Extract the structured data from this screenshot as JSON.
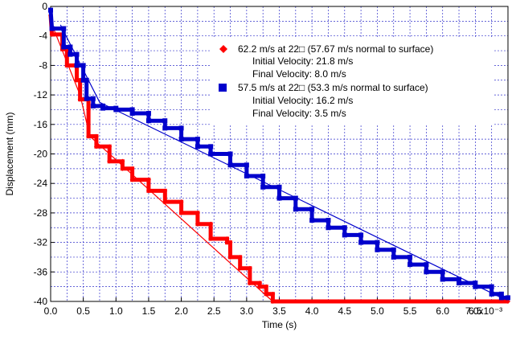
{
  "chart_data": {
    "type": "line",
    "xlabel": "Time (s)",
    "ylabel": "Displacement (mm)",
    "xlim": [
      0,
      0.007
    ],
    "ylim": [
      -40,
      0
    ],
    "grid": true,
    "legend_position": "top-right",
    "x_ticks": [
      "0.0",
      "0.5",
      "1.0",
      "1.5",
      "2.0",
      "2.5",
      "3.0",
      "3.5",
      "4.0",
      "4.5",
      "5.0",
      "5.5",
      "6.0",
      "6.5",
      "7.0x10⁻³"
    ],
    "y_ticks": [
      "0",
      "-4",
      "-8",
      "-12",
      "-16",
      "-20",
      "-24",
      "-28",
      "-32",
      "-36",
      "-40"
    ],
    "series": [
      {
        "name": "62.2 m/s at 22□ (57.67 m/s normal to surface)",
        "color": "#ff0000",
        "marker": "diamond",
        "sublabels": [
          "Initial Velocity: 21.8 m/s",
          "Final Velocity: 8.0 m/s"
        ],
        "fit": [
          [
            0.0,
            -2.0
          ],
          [
            0.00045,
            -12.0
          ],
          [
            0.0006,
            -17.6
          ],
          [
            0.0034,
            -40.0
          ]
        ],
        "points": [
          [
            0.0,
            -1.2
          ],
          [
            2e-05,
            -3.8
          ],
          [
            0.00018,
            -3.8
          ],
          [
            0.00018,
            -5.8
          ],
          [
            0.00025,
            -5.8
          ],
          [
            0.00025,
            -8.0
          ],
          [
            0.0004,
            -8.0
          ],
          [
            0.0004,
            -10.0
          ],
          [
            0.00045,
            -10.0
          ],
          [
            0.00045,
            -12.6
          ],
          [
            0.00058,
            -12.6
          ],
          [
            0.00058,
            -17.6
          ],
          [
            0.0007,
            -17.6
          ],
          [
            0.0007,
            -19.0
          ],
          [
            0.0009,
            -19.0
          ],
          [
            0.0009,
            -21.0
          ],
          [
            0.0011,
            -21.0
          ],
          [
            0.0011,
            -22.0
          ],
          [
            0.00125,
            -22.0
          ],
          [
            0.00125,
            -23.5
          ],
          [
            0.0015,
            -23.5
          ],
          [
            0.0015,
            -25.0
          ],
          [
            0.00175,
            -25.0
          ],
          [
            0.00175,
            -26.5
          ],
          [
            0.002,
            -26.5
          ],
          [
            0.002,
            -28.0
          ],
          [
            0.00225,
            -28.0
          ],
          [
            0.00225,
            -29.5
          ],
          [
            0.00245,
            -29.5
          ],
          [
            0.00245,
            -31.5
          ],
          [
            0.0027,
            -31.5
          ],
          [
            0.0027,
            -32.0
          ],
          [
            0.00275,
            -32.0
          ],
          [
            0.00275,
            -34.0
          ],
          [
            0.0029,
            -34.0
          ],
          [
            0.0029,
            -35.5
          ],
          [
            0.00305,
            -35.5
          ],
          [
            0.00305,
            -37.5
          ],
          [
            0.0032,
            -37.5
          ],
          [
            0.0032,
            -38.0
          ],
          [
            0.0033,
            -38.0
          ],
          [
            0.0033,
            -39.0
          ],
          [
            0.0034,
            -39.0
          ],
          [
            0.0034,
            -40.0
          ],
          [
            0.007,
            -40.0
          ]
        ]
      },
      {
        "name": "57.5 m/s at 22□ (53.3 m/s normal to surface)",
        "color": "#0000cc",
        "marker": "square",
        "sublabels": [
          "Initial Velocity: 16.2 m/s",
          "Final Velocity: 3.5 m/s"
        ],
        "fit": [
          [
            0.00015,
            -2.5
          ],
          [
            0.00075,
            -13.0
          ],
          [
            0.0069,
            -39.5
          ]
        ],
        "points": [
          [
            0.0,
            -0.5
          ],
          [
            2e-05,
            -3.0
          ],
          [
            0.0002,
            -3.0
          ],
          [
            0.0002,
            -5.5
          ],
          [
            0.0003,
            -5.5
          ],
          [
            0.0003,
            -6.5
          ],
          [
            0.0004,
            -6.5
          ],
          [
            0.0004,
            -8.0
          ],
          [
            0.0005,
            -8.0
          ],
          [
            0.0005,
            -10.0
          ],
          [
            0.00055,
            -10.0
          ],
          [
            0.00055,
            -12.5
          ],
          [
            0.00065,
            -12.5
          ],
          [
            0.00065,
            -13.5
          ],
          [
            0.0008,
            -13.5
          ],
          [
            0.0008,
            -13.8
          ],
          [
            0.001,
            -13.8
          ],
          [
            0.001,
            -14.0
          ],
          [
            0.00125,
            -14.0
          ],
          [
            0.00125,
            -14.5
          ],
          [
            0.0015,
            -14.5
          ],
          [
            0.0015,
            -15.5
          ],
          [
            0.00175,
            -15.5
          ],
          [
            0.00175,
            -16.5
          ],
          [
            0.002,
            -16.5
          ],
          [
            0.002,
            -18.0
          ],
          [
            0.00225,
            -18.0
          ],
          [
            0.00225,
            -19.0
          ],
          [
            0.00245,
            -19.0
          ],
          [
            0.00245,
            -20.0
          ],
          [
            0.00275,
            -20.0
          ],
          [
            0.00275,
            -21.5
          ],
          [
            0.003,
            -21.5
          ],
          [
            0.003,
            -23.0
          ],
          [
            0.00325,
            -23.0
          ],
          [
            0.00325,
            -24.5
          ],
          [
            0.0035,
            -24.5
          ],
          [
            0.0035,
            -26.0
          ],
          [
            0.00375,
            -26.0
          ],
          [
            0.00375,
            -27.5
          ],
          [
            0.004,
            -27.5
          ],
          [
            0.004,
            -29.0
          ],
          [
            0.00425,
            -29.0
          ],
          [
            0.00425,
            -30.0
          ],
          [
            0.0045,
            -30.0
          ],
          [
            0.0045,
            -31.0
          ],
          [
            0.00475,
            -31.0
          ],
          [
            0.00475,
            -32.0
          ],
          [
            0.005,
            -32.0
          ],
          [
            0.005,
            -33.0
          ],
          [
            0.00525,
            -33.0
          ],
          [
            0.00525,
            -34.0
          ],
          [
            0.0055,
            -34.0
          ],
          [
            0.0055,
            -35.0
          ],
          [
            0.00575,
            -35.0
          ],
          [
            0.00575,
            -36.0
          ],
          [
            0.006,
            -36.0
          ],
          [
            0.006,
            -37.0
          ],
          [
            0.00625,
            -37.0
          ],
          [
            0.00625,
            -37.5
          ],
          [
            0.0065,
            -37.5
          ],
          [
            0.0065,
            -38.0
          ],
          [
            0.00675,
            -38.0
          ],
          [
            0.00675,
            -39.0
          ],
          [
            0.0069,
            -39.0
          ],
          [
            0.0069,
            -39.5
          ],
          [
            0.007,
            -39.5
          ]
        ]
      }
    ]
  }
}
